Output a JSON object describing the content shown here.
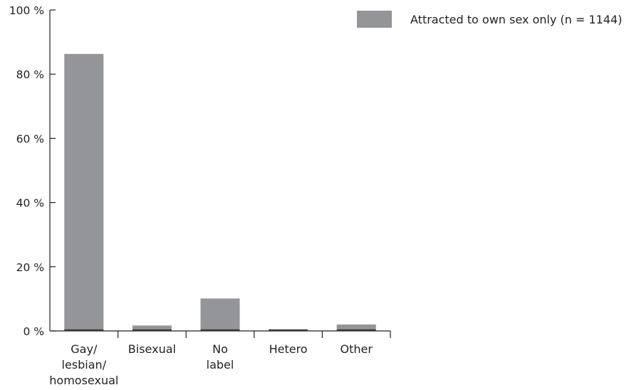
{
  "chart_data": {
    "type": "bar",
    "title": "",
    "xlabel": "",
    "ylabel": "",
    "categories": [
      "Gay/ lesbian/ homosexual",
      "Bisexual",
      "No label",
      "Hetero",
      "Other"
    ],
    "category_lines": [
      [
        "Gay/",
        "lesbian/",
        "homosexual"
      ],
      [
        "Bisexual"
      ],
      [
        "No",
        "label"
      ],
      [
        "Hetero"
      ],
      [
        "Other"
      ]
    ],
    "series": [
      {
        "name": "Attracted to own sex only (n = 1144)",
        "values": [
          86.3,
          1.7,
          10.1,
          0.3,
          2.0
        ],
        "color": "#939598"
      }
    ],
    "ylim": [
      0,
      100
    ],
    "yticks": [
      0,
      20,
      40,
      60,
      80,
      100
    ],
    "ytick_labels": [
      "0 %",
      "20 %",
      "40 %",
      "60 %",
      "80 %",
      "100 %"
    ],
    "grid": false,
    "legend_position": "top-right",
    "axis_color": "#231f20"
  }
}
